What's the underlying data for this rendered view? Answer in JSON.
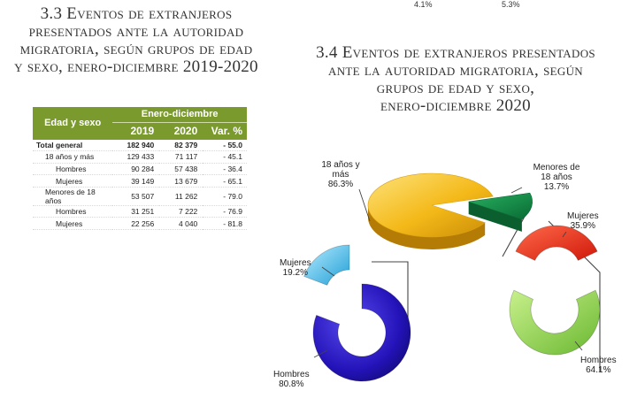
{
  "top_values": {
    "left": "4.1%",
    "right": "5.3%"
  },
  "section_33": {
    "title_lines": [
      "3.3 Eventos de extranjeros",
      "presentados ante la autoridad",
      "migratoria, según grupos de edad",
      "y sexo, enero-diciembre 2019-2020"
    ]
  },
  "section_34": {
    "title_lines": [
      "3.4 Eventos de extranjeros presentados",
      "ante la autoridad migratoria, según",
      "grupos de edad y sexo,",
      "enero-diciembre 2020"
    ]
  },
  "table": {
    "col_header": "Edad y sexo",
    "group_header": "Enero-diciembre",
    "columns": [
      "2019",
      "2020",
      "Var. %"
    ],
    "rows": [
      {
        "label": "Total general",
        "v2019": "182 940",
        "v2020": "82 379",
        "var": "- 55.0",
        "bold": true
      },
      {
        "label": "18 años y más",
        "v2019": "129 433",
        "v2020": "71 117",
        "var": "- 45.1"
      },
      {
        "label": "Hombres",
        "v2019": "90 284",
        "v2020": "57 438",
        "var": "- 36.4"
      },
      {
        "label": "Mujeres",
        "v2019": "39 149",
        "v2020": "13 679",
        "var": "- 65.1"
      },
      {
        "label": "Menores de 18 años",
        "v2019": "53 507",
        "v2020": "11 262",
        "var": "- 79.0"
      },
      {
        "label": "Hombres",
        "v2019": "31 251",
        "v2020": "7 222",
        "var": "- 76.9"
      },
      {
        "label": "Mujeres",
        "v2019": "22 256",
        "v2020": "4 040",
        "var": "- 81.8"
      }
    ]
  },
  "chart_data": [
    {
      "type": "pie",
      "title": "",
      "categories": [
        "18 años y más",
        "Menores de 18 años"
      ],
      "values": [
        86.3,
        13.7
      ],
      "colors": [
        "#f2b81c",
        "#0e8a43"
      ],
      "labels": {
        "adults": "18 años y más",
        "adults_value": "86.3%",
        "minors": "Menores de 18 años",
        "minors_value": "13.7%"
      }
    },
    {
      "type": "pie",
      "title": "18 años y más",
      "categories": [
        "Hombres",
        "Mujeres"
      ],
      "values": [
        80.8,
        19.2
      ],
      "colors": [
        "#2a1fc2",
        "#2fb8e8"
      ],
      "labels": {
        "women": "Mujeres",
        "women_value": "19.2%",
        "men": "Hombres",
        "men_value": "80.8%"
      }
    },
    {
      "type": "pie",
      "title": "Menores de 18 años",
      "categories": [
        "Mujeres",
        "Hombres"
      ],
      "values": [
        35.9,
        64.1
      ],
      "colors": [
        "#f22a10",
        "#92d64a"
      ],
      "labels": {
        "women": "Mujeres",
        "women_value": "35.9%",
        "men": "Hombres",
        "men_value": "64.1%"
      }
    }
  ]
}
